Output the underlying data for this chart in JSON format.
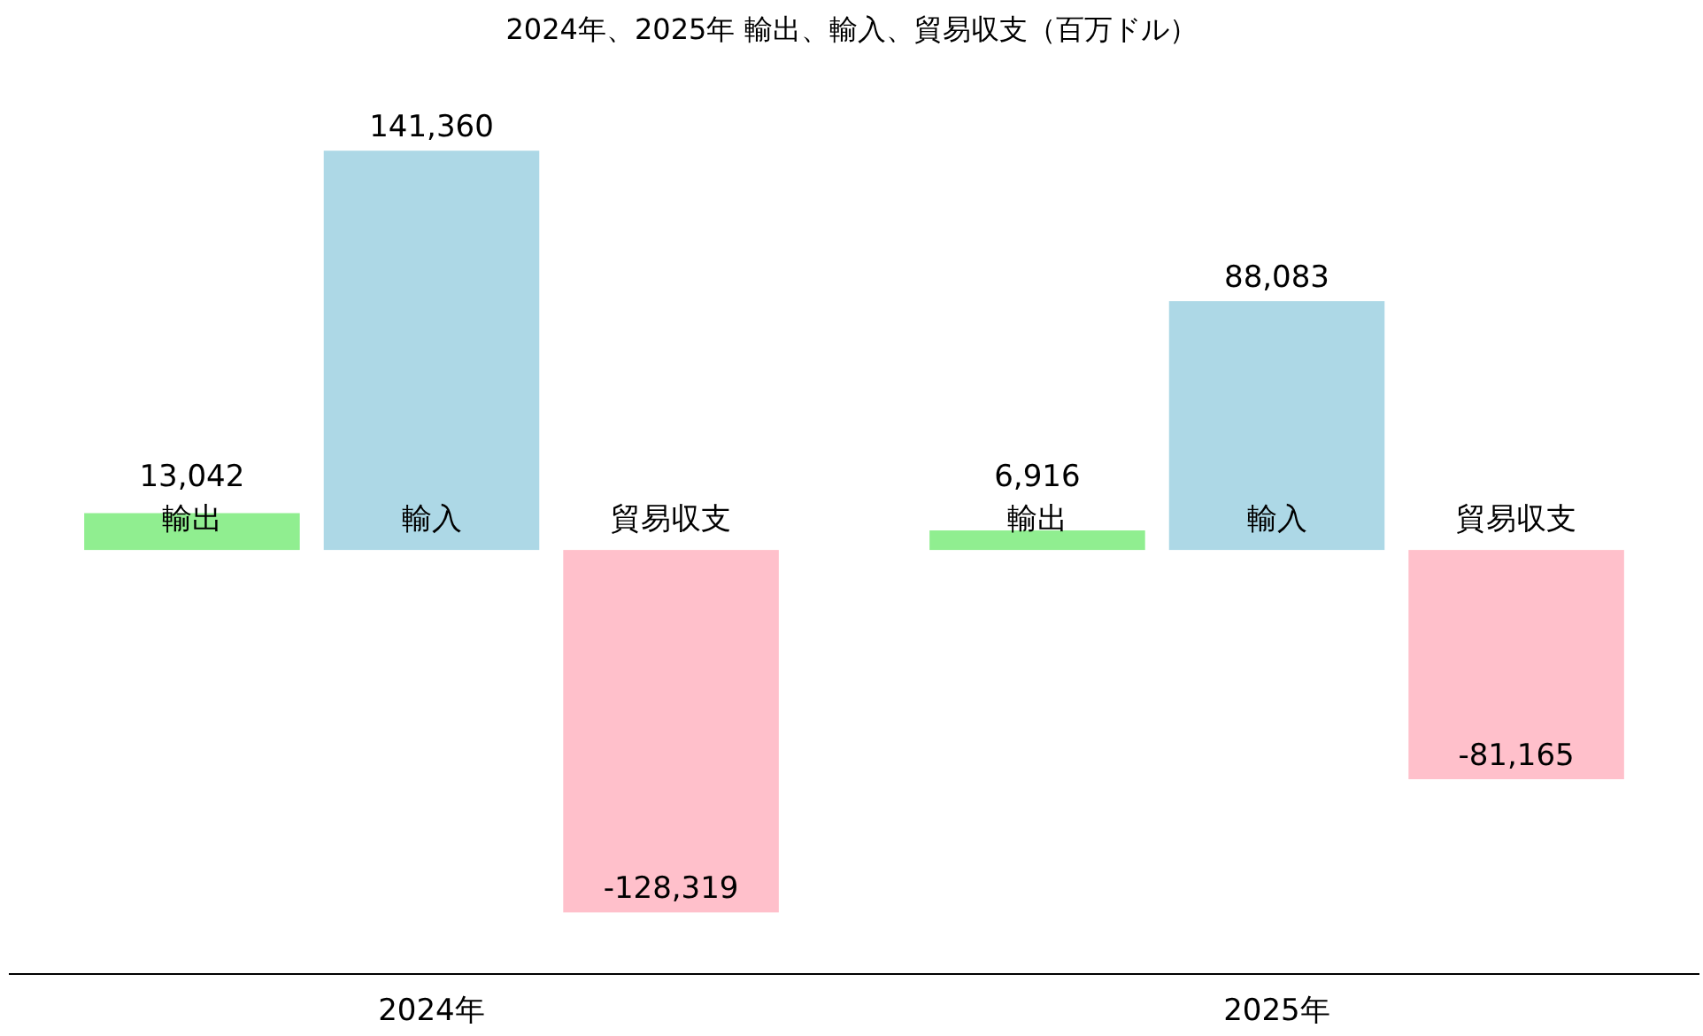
{
  "chart_data": {
    "type": "bar",
    "title": "2024年、2025年 輸出、輸入、貿易収支（百万ドル）",
    "categories": [
      "2024年",
      "2025年"
    ],
    "series": [
      {
        "name": "輸出",
        "color": "#90ee90",
        "values": [
          13042,
          6916
        ],
        "value_labels": [
          "13,042",
          "6,916"
        ]
      },
      {
        "name": "輸入",
        "color": "#add8e6",
        "values": [
          141360,
          88083
        ],
        "value_labels": [
          "141,360",
          "88,083"
        ]
      },
      {
        "name": "貿易収支",
        "color": "#ffc0cb",
        "values": [
          -128319,
          -81165
        ],
        "value_labels": [
          "-128,319",
          "-81,165"
        ]
      }
    ]
  }
}
